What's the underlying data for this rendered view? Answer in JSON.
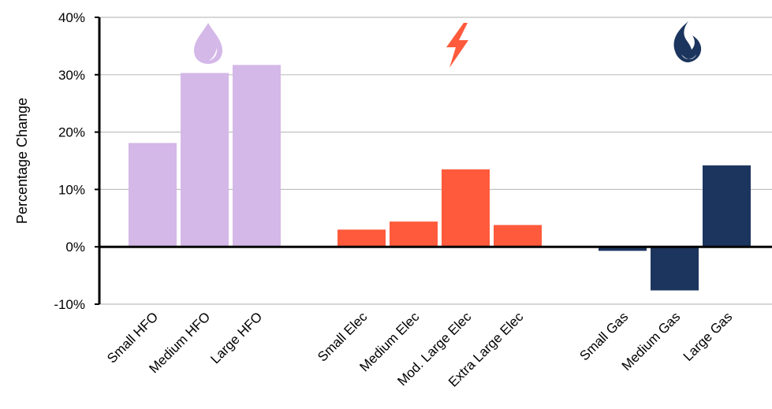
{
  "chart_data": {
    "type": "bar",
    "ylabel": "Percentage Change",
    "ylim": [
      -10,
      40
    ],
    "yticks": [
      -10,
      0,
      10,
      20,
      30,
      40
    ],
    "ytick_labels": [
      "-10%",
      "0%",
      "10%",
      "20%",
      "30%",
      "40%"
    ],
    "grid": "horizontal",
    "groups": [
      {
        "icon": "water-drop-icon",
        "color": "#D4B8E8",
        "categories": [
          "Small HFO",
          "Medium HFO",
          "Large HFO"
        ],
        "values": [
          18.1,
          30.3,
          31.7
        ]
      },
      {
        "icon": "lightning-bolt-icon",
        "color": "#FF5A3C",
        "categories": [
          "Small Elec",
          "Medium Elec",
          "Mod. Large Elec",
          "Extra Large Elec"
        ],
        "values": [
          3.0,
          4.4,
          13.5,
          3.8
        ]
      },
      {
        "icon": "gas-flame-icon",
        "color": "#1C355E",
        "categories": [
          "Small Gas",
          "Medium Gas",
          "Large Gas"
        ],
        "values": [
          -0.7,
          -7.6,
          14.2
        ]
      }
    ]
  }
}
